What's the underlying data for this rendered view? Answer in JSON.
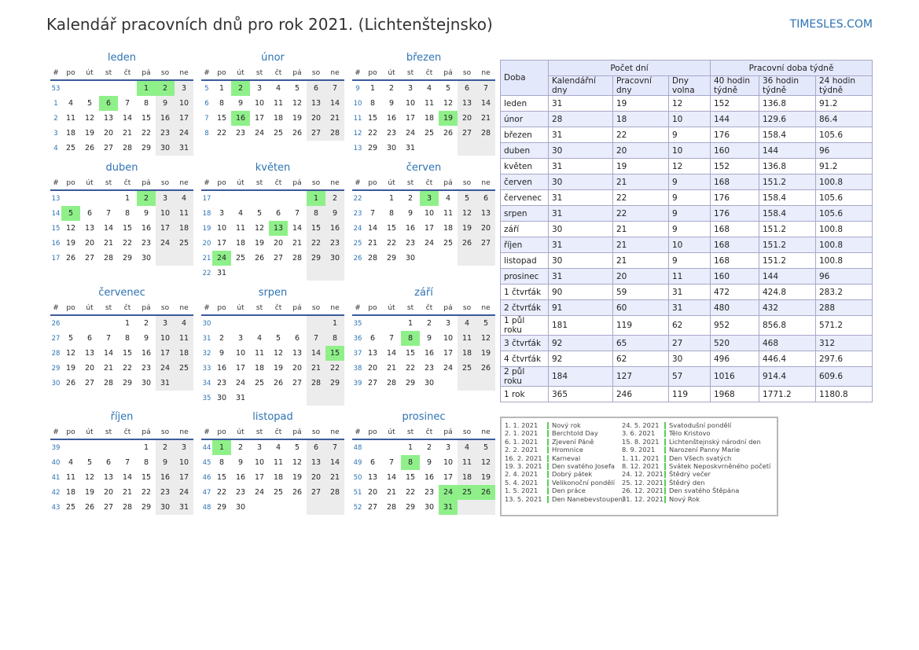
{
  "title": "Kalendář pracovních dnů pro rok 2021. (Lichtenštejnsko)",
  "site": "TIMESLES.COM",
  "weekday_headers": [
    "#",
    "po",
    "út",
    "st",
    "čt",
    "pá",
    "so",
    "ne"
  ],
  "months": [
    {
      "name": "leden",
      "weeks": [
        53,
        1,
        2,
        3,
        4
      ],
      "first_weekday": 4,
      "days": 31,
      "holidays": [
        1,
        2,
        6
      ]
    },
    {
      "name": "únor",
      "weeks": [
        5,
        6,
        7,
        8
      ],
      "first_weekday": 0,
      "days": 28,
      "holidays": [
        2,
        16
      ]
    },
    {
      "name": "březen",
      "weeks": [
        9,
        10,
        11,
        12,
        13
      ],
      "first_weekday": 0,
      "days": 31,
      "holidays": [
        19
      ]
    },
    {
      "name": "duben",
      "weeks": [
        13,
        14,
        15,
        16,
        17
      ],
      "first_weekday": 3,
      "days": 30,
      "holidays": [
        2,
        5
      ]
    },
    {
      "name": "květen",
      "weeks": [
        17,
        18,
        19,
        20,
        21,
        22
      ],
      "first_weekday": 5,
      "days": 31,
      "holidays": [
        1,
        13,
        24
      ]
    },
    {
      "name": "červen",
      "weeks": [
        22,
        23,
        24,
        25,
        26
      ],
      "first_weekday": 1,
      "days": 30,
      "holidays": [
        3
      ]
    },
    {
      "name": "červenec",
      "weeks": [
        26,
        27,
        28,
        29,
        30
      ],
      "first_weekday": 3,
      "days": 31,
      "holidays": []
    },
    {
      "name": "srpen",
      "weeks": [
        30,
        31,
        32,
        33,
        34,
        35
      ],
      "first_weekday": 6,
      "days": 31,
      "holidays": [
        15
      ]
    },
    {
      "name": "září",
      "weeks": [
        35,
        36,
        37,
        38,
        39
      ],
      "first_weekday": 2,
      "days": 30,
      "holidays": [
        8
      ]
    },
    {
      "name": "říjen",
      "weeks": [
        39,
        40,
        41,
        42,
        43
      ],
      "first_weekday": 4,
      "days": 31,
      "holidays": []
    },
    {
      "name": "listopad",
      "weeks": [
        44,
        45,
        46,
        47,
        48
      ],
      "first_weekday": 0,
      "days": 30,
      "holidays": [
        1
      ]
    },
    {
      "name": "prosinec",
      "weeks": [
        48,
        49,
        50,
        51,
        52
      ],
      "first_weekday": 2,
      "days": 31,
      "holidays": [
        8,
        24,
        25,
        26,
        31
      ]
    }
  ],
  "summary": {
    "col_doba": "Doba",
    "group_days": "Počet dní",
    "group_hours": "Pracovní doba týdně",
    "cols": [
      "Kalendářní dny",
      "Pracovní dny",
      "Dny volna",
      "40 hodin týdně",
      "36 hodin týdně",
      "24 hodin týdně"
    ],
    "rows": [
      [
        "leden",
        "31",
        "19",
        "12",
        "152",
        "136.8",
        "91.2"
      ],
      [
        "únor",
        "28",
        "18",
        "10",
        "144",
        "129.6",
        "86.4"
      ],
      [
        "březen",
        "31",
        "22",
        "9",
        "176",
        "158.4",
        "105.6"
      ],
      [
        "duben",
        "30",
        "20",
        "10",
        "160",
        "144",
        "96"
      ],
      [
        "květen",
        "31",
        "19",
        "12",
        "152",
        "136.8",
        "91.2"
      ],
      [
        "červen",
        "30",
        "21",
        "9",
        "168",
        "151.2",
        "100.8"
      ],
      [
        "červenec",
        "31",
        "22",
        "9",
        "176",
        "158.4",
        "105.6"
      ],
      [
        "srpen",
        "31",
        "22",
        "9",
        "176",
        "158.4",
        "105.6"
      ],
      [
        "září",
        "30",
        "21",
        "9",
        "168",
        "151.2",
        "100.8"
      ],
      [
        "říjen",
        "31",
        "21",
        "10",
        "168",
        "151.2",
        "100.8"
      ],
      [
        "listopad",
        "30",
        "21",
        "9",
        "168",
        "151.2",
        "100.8"
      ],
      [
        "prosinec",
        "31",
        "20",
        "11",
        "160",
        "144",
        "96"
      ],
      [
        "1 čtvrťák",
        "90",
        "59",
        "31",
        "472",
        "424.8",
        "283.2"
      ],
      [
        "2 čtvrťák",
        "91",
        "60",
        "31",
        "480",
        "432",
        "288"
      ],
      [
        "1 půl roku",
        "181",
        "119",
        "62",
        "952",
        "856.8",
        "571.2"
      ],
      [
        "3 čtvrťák",
        "92",
        "65",
        "27",
        "520",
        "468",
        "312"
      ],
      [
        "4 čtvrťák",
        "92",
        "62",
        "30",
        "496",
        "446.4",
        "297.6"
      ],
      [
        "2 půl roku",
        "184",
        "127",
        "57",
        "1016",
        "914.4",
        "609.6"
      ],
      [
        "1 rok",
        "365",
        "246",
        "119",
        "1968",
        "1771.2",
        "1180.8"
      ]
    ]
  },
  "holidays": [
    {
      "date": "1. 1. 2021",
      "name": "Nový rok"
    },
    {
      "date": "2. 1. 2021",
      "name": "Berchtold Day"
    },
    {
      "date": "6. 1. 2021",
      "name": "Zjevení Páně"
    },
    {
      "date": "2. 2. 2021",
      "name": "Hromnice"
    },
    {
      "date": "16. 2. 2021",
      "name": "Karneval"
    },
    {
      "date": "19. 3. 2021",
      "name": "Den svatého Josefa"
    },
    {
      "date": "2. 4. 2021",
      "name": "Dobrý pátek"
    },
    {
      "date": "5. 4. 2021",
      "name": "Velikonoční pondělí"
    },
    {
      "date": "1. 5. 2021",
      "name": "Den práce"
    },
    {
      "date": "13. 5. 2021",
      "name": "Den Nanebevstoupení"
    },
    {
      "date": "24. 5. 2021",
      "name": "Svatodušní pondělí"
    },
    {
      "date": "3. 6. 2021",
      "name": "Tělo Kristovo"
    },
    {
      "date": "15. 8. 2021",
      "name": "Lichtenštejnský národní den"
    },
    {
      "date": "8. 9. 2021",
      "name": "Narození Panny Marie"
    },
    {
      "date": "1. 11. 2021",
      "name": "Den Všech svatých"
    },
    {
      "date": "8. 12. 2021",
      "name": "Svátek Neposkvrněného početí"
    },
    {
      "date": "24. 12. 2021",
      "name": "Štědrý večer"
    },
    {
      "date": "25. 12. 2021",
      "name": "Štědrý den"
    },
    {
      "date": "26. 12. 2021",
      "name": "Den svatého Štěpána"
    },
    {
      "date": "31. 12. 2021",
      "name": "Nový Rok"
    }
  ],
  "colors": {
    "accent": "#2d73b4",
    "holiday": "#8ff08a",
    "weekend": "#ececec",
    "table_header": "#e4e8fb",
    "table_alt": "#e9edfc"
  }
}
